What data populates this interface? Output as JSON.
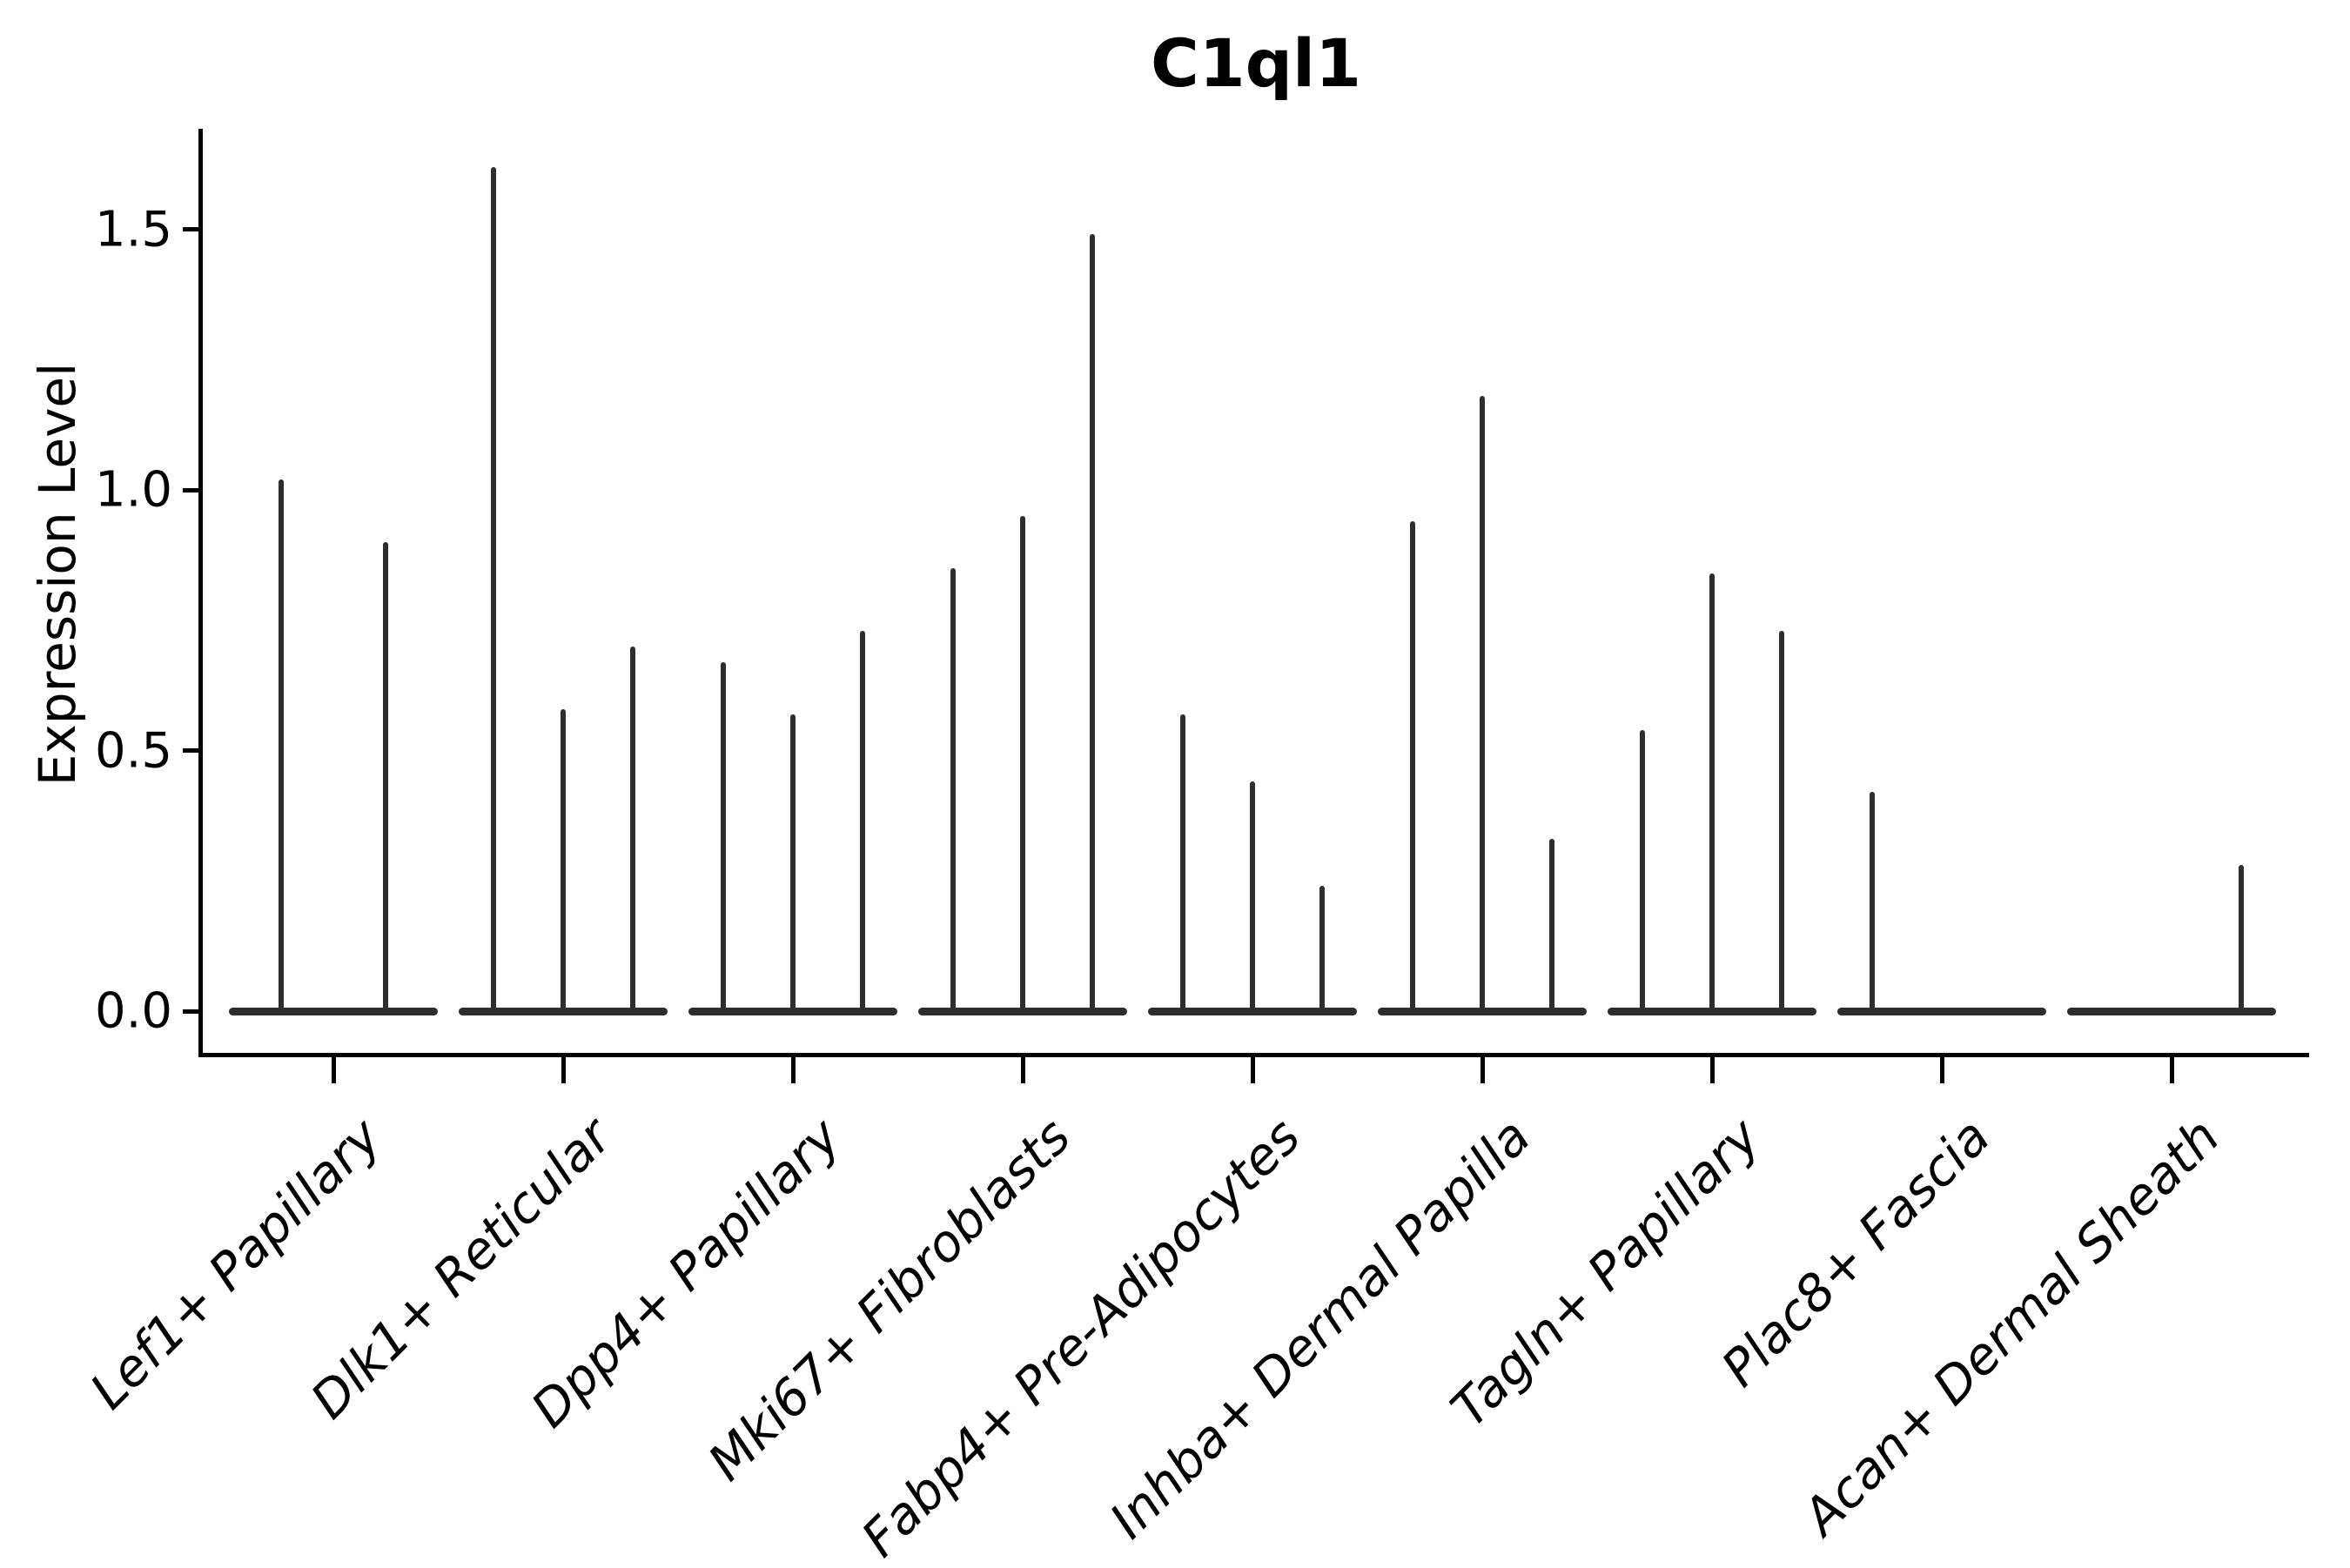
{
  "chart_data": {
    "type": "violin",
    "title": "C1ql1",
    "ylabel": "Expression Level",
    "xlabel": "",
    "grid": false,
    "legend_position": "none",
    "ylim": [
      -0.08,
      1.69
    ],
    "ytick_labels": [
      "0.0",
      "0.5",
      "1.0",
      "1.5"
    ],
    "ytick_values": [
      0.0,
      0.5,
      1.0,
      1.5
    ],
    "violin_color": "#2e2e2e",
    "axis_color": "#000000",
    "categories": [
      "Lef1+ Papillary",
      "Dlk1+ Reticular",
      "Dpp4+ Papillary",
      "Mki67+ Fibroblasts",
      "Fabp4+ Pre-Adipocytes",
      "Inhba+ Dermal Papilla",
      "Tagln+ Papillary",
      "Plac8+ Fascia",
      "Acan+ Dermal Sheath"
    ],
    "groups": [
      {
        "category": "Lef1+ Papillary",
        "violins": [
          {
            "offset": -60,
            "max": 1.02
          },
          {
            "offset": 60,
            "max": 0.9
          }
        ]
      },
      {
        "category": "Dlk1+ Reticular",
        "violins": [
          {
            "offset": -80,
            "max": 1.62
          },
          {
            "offset": 0,
            "max": 0.58
          },
          {
            "offset": 80,
            "max": 0.7
          }
        ]
      },
      {
        "category": "Dpp4+ Papillary",
        "violins": [
          {
            "offset": -80,
            "max": 0.67
          },
          {
            "offset": 0,
            "max": 0.57
          },
          {
            "offset": 80,
            "max": 0.73
          }
        ]
      },
      {
        "category": "Mki67+ Fibroblasts",
        "violins": [
          {
            "offset": -80,
            "max": 0.85
          },
          {
            "offset": 0,
            "max": 0.95
          },
          {
            "offset": 80,
            "max": 1.49
          }
        ]
      },
      {
        "category": "Fabp4+ Pre-Adipocytes",
        "violins": [
          {
            "offset": -80,
            "max": 0.57
          },
          {
            "offset": 0,
            "max": 0.44
          },
          {
            "offset": 80,
            "max": 0.24
          }
        ]
      },
      {
        "category": "Inhba+ Dermal Papilla",
        "violins": [
          {
            "offset": -80,
            "max": 0.94
          },
          {
            "offset": 0,
            "max": 1.18
          },
          {
            "offset": 80,
            "max": 0.33
          }
        ]
      },
      {
        "category": "Tagln+ Papillary",
        "violins": [
          {
            "offset": -80,
            "max": 0.54
          },
          {
            "offset": 0,
            "max": 0.84
          },
          {
            "offset": 80,
            "max": 0.73
          }
        ]
      },
      {
        "category": "Plac8+ Fascia",
        "violins": [
          {
            "offset": -80,
            "max": 0.42
          },
          {
            "offset": 0,
            "max": 0.0
          },
          {
            "offset": 80,
            "max": 0.0
          }
        ]
      },
      {
        "category": "Acan+ Dermal Sheath",
        "violins": [
          {
            "offset": -80,
            "max": 0.0
          },
          {
            "offset": 0,
            "max": 0.0
          },
          {
            "offset": 80,
            "max": 0.28
          }
        ]
      }
    ]
  }
}
